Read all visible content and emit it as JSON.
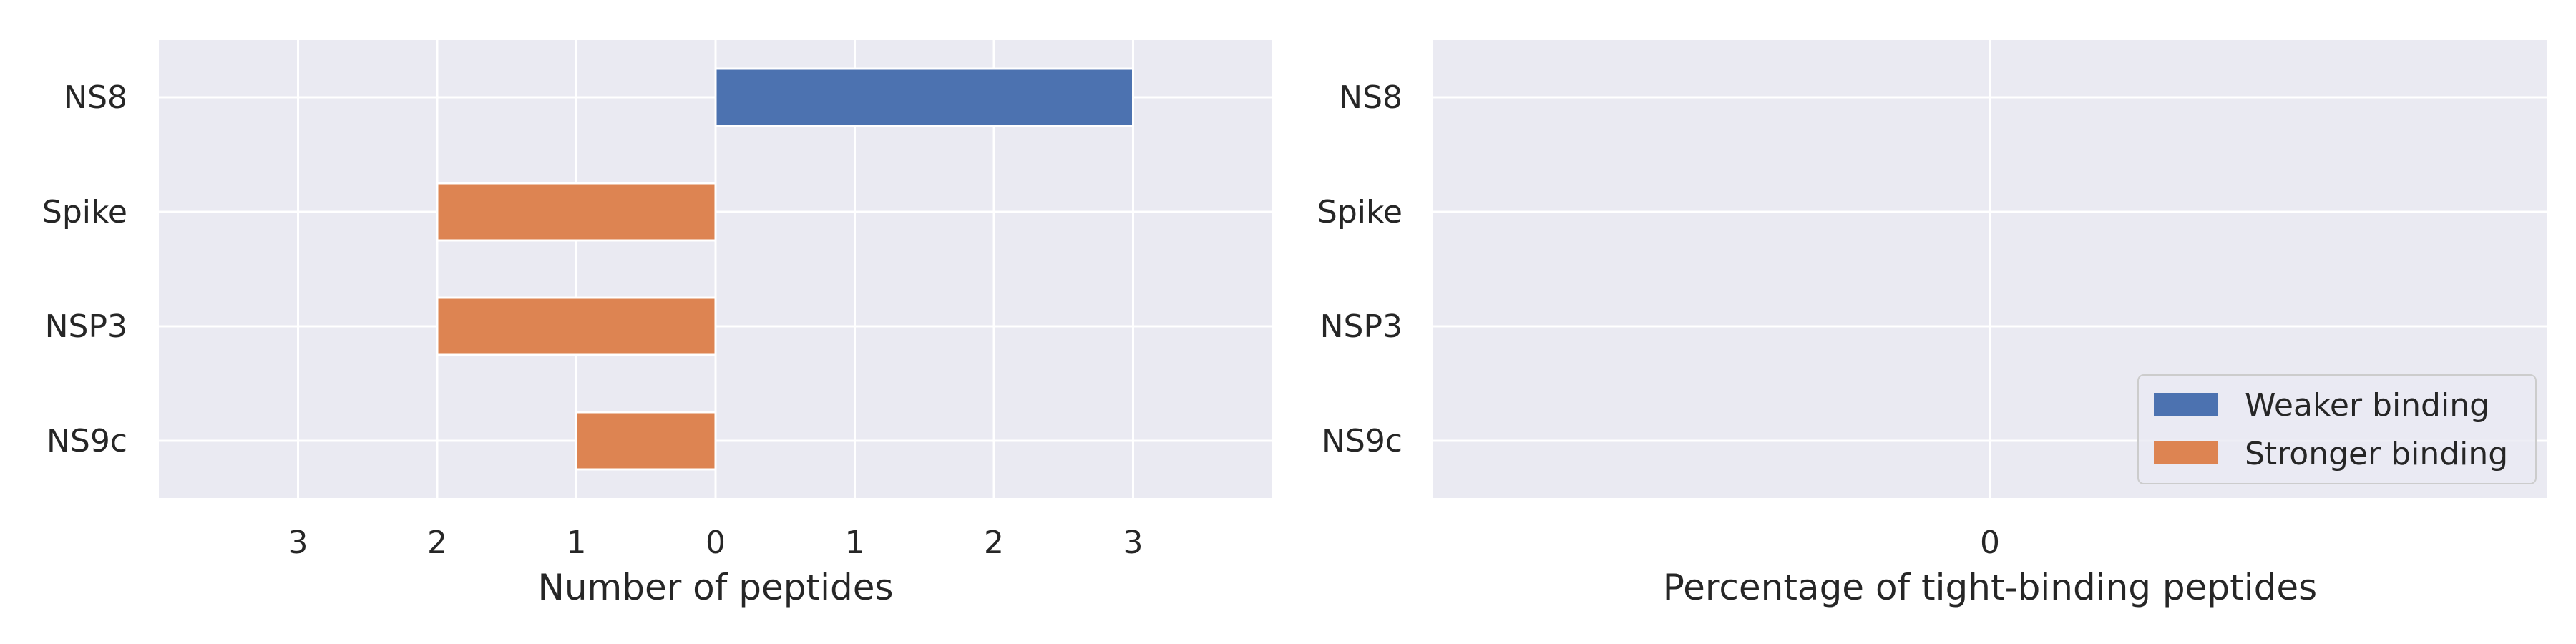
{
  "chart_data": [
    {
      "type": "bar",
      "orientation": "horizontal",
      "stacking": "diverging",
      "categories": [
        "NS8",
        "Spike",
        "NSP3",
        "NS9c"
      ],
      "series": [
        {
          "name": "Weaker binding",
          "values": [
            3,
            0,
            0,
            0
          ],
          "color": "#4c72b0"
        },
        {
          "name": "Stronger binding",
          "values": [
            0,
            2,
            2,
            1
          ],
          "color": "#dd8452"
        }
      ],
      "xlabel": "Number of peptides",
      "xtick_labels": [
        "3",
        "2",
        "1",
        "0",
        "1",
        "2",
        "3"
      ],
      "xlim": [
        -4,
        4
      ],
      "grid": true
    },
    {
      "type": "bar",
      "orientation": "horizontal",
      "categories": [
        "NS8",
        "Spike",
        "NSP3",
        "NS9c"
      ],
      "series": [
        {
          "name": "Weaker binding",
          "values": [
            0,
            0,
            0,
            0
          ],
          "color": "#4c72b0"
        },
        {
          "name": "Stronger binding",
          "values": [
            0,
            0,
            0,
            0
          ],
          "color": "#dd8452"
        }
      ],
      "xlabel": "Percentage of tight-binding peptides",
      "xtick_labels": [
        "0"
      ],
      "xlim": [
        -1,
        1
      ],
      "legend": {
        "placement": "lower-right",
        "entries": [
          "Weaker binding",
          "Stronger binding"
        ]
      },
      "grid": true
    }
  ],
  "theme": {
    "plot_background": "#eaeaf2",
    "grid_color": "#ffffff",
    "text_color": "#262626"
  }
}
